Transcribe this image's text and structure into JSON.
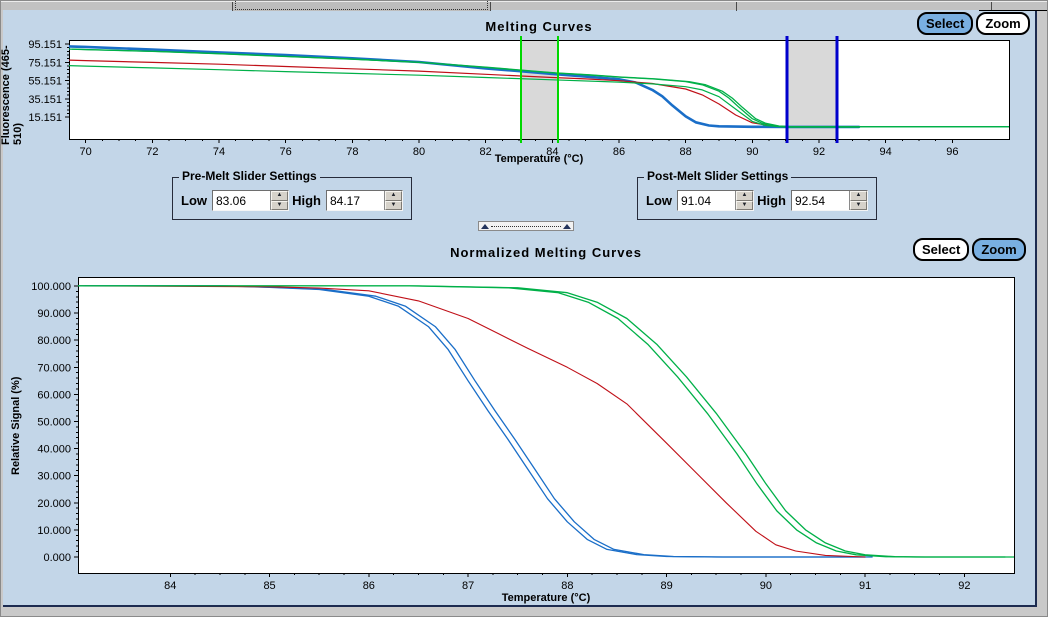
{
  "window": {
    "app_bg": "#c3d6e8"
  },
  "top_chart": {
    "title": "Melting Curves",
    "select_label": "Select",
    "zoom_label": "Zoom",
    "active_button": "Select",
    "xlabel": "Temperature (°C)",
    "ylabel": "Fluorescence (465-510)"
  },
  "pre_melt": {
    "title": "Pre-Melt Slider Settings",
    "low_label": "Low",
    "low_value": "83.06",
    "high_label": "High",
    "high_value": "84.17",
    "spinner_up_icon": "▲",
    "spinner_down_icon": "▼"
  },
  "post_melt": {
    "title": "Post-Melt Slider Settings",
    "low_label": "Low",
    "low_value": "91.04",
    "high_label": "High",
    "high_value": "92.54",
    "spinner_up_icon": "▲",
    "spinner_down_icon": "▼"
  },
  "divider": {
    "left_icon": "▲",
    "right_icon": "▲"
  },
  "bottom_chart": {
    "title": "Normalized Melting Curves",
    "select_label": "Select",
    "zoom_label": "Zoom",
    "active_button": "Zoom",
    "xlabel": "Temperature (°C)",
    "ylabel": "Relative Signal (%)"
  },
  "colors": {
    "background": "#c3d6e8",
    "active_button": "#79afe1",
    "curve_blue": "#1a6ec8",
    "curve_red": "#c01018",
    "curve_green": "#00b048",
    "marker_green": "#00d800",
    "marker_blue": "#0000cc",
    "band_gray": "#d9d9d9"
  },
  "chart_data": [
    {
      "type": "line",
      "title": "Melting Curves",
      "xlabel": "Temperature (°C)",
      "ylabel": "Fluorescence (465-510)",
      "xlim": [
        69.5,
        97.7
      ],
      "ylim": [
        -8.7,
        99.5
      ],
      "grid": false,
      "legend": "none",
      "xticks": [
        70,
        72,
        74,
        76,
        78,
        80,
        82,
        84,
        86,
        88,
        90,
        92,
        94,
        96
      ],
      "yticks": [
        {
          "v": 95.151,
          "label": "95.151"
        },
        {
          "v": 75.151,
          "label": "75.151"
        },
        {
          "v": 55.151,
          "label": "55.151"
        },
        {
          "v": 35.151,
          "label": "35.151"
        },
        {
          "v": 15.151,
          "label": "15.151"
        }
      ],
      "bands": [
        {
          "x1": 83.06,
          "x2": 84.17,
          "color": "#d9d9d9"
        },
        {
          "x1": 91.04,
          "x2": 92.54,
          "color": "#d9d9d9"
        }
      ],
      "vlines": [
        {
          "x": 83.06,
          "color": "#00d800",
          "w": 2,
          "role": "pre-melt-low-slider"
        },
        {
          "x": 84.17,
          "color": "#00d800",
          "w": 2,
          "role": "pre-melt-high-slider"
        },
        {
          "x": 91.04,
          "color": "#0000cc",
          "w": 3,
          "role": "post-melt-low-slider"
        },
        {
          "x": 92.54,
          "color": "#0000cc",
          "w": 3,
          "role": "post-melt-high-slider"
        }
      ],
      "series": [
        {
          "name": "melt-blue-replicates",
          "color": "#1a6ec8",
          "width": 2.6,
          "repeat": [
            0
          ],
          "points": [
            [
              69.5,
              92.5
            ],
            [
              70,
              92
            ],
            [
              72,
              89
            ],
            [
              74,
              86
            ],
            [
              76,
              83
            ],
            [
              78,
              79.5
            ],
            [
              80,
              75.5
            ],
            [
              82,
              68.5
            ],
            [
              83,
              65.5
            ],
            [
              84,
              62.5
            ],
            [
              85,
              59.5
            ],
            [
              86,
              56.5
            ],
            [
              86.5,
              53
            ],
            [
              87,
              45
            ],
            [
              87.3,
              38
            ],
            [
              87.6,
              28
            ],
            [
              88,
              16
            ],
            [
              88.3,
              9.5
            ],
            [
              88.7,
              6
            ],
            [
              89,
              5.2
            ],
            [
              89.5,
              4.8
            ],
            [
              90,
              4.6
            ],
            [
              91,
              4.5
            ],
            [
              93.2,
              4.5
            ]
          ]
        },
        {
          "name": "melt-red",
          "color": "#c01018",
          "width": 1.2,
          "repeat": [
            0
          ],
          "points": [
            [
              69.5,
              77.5
            ],
            [
              70,
              77
            ],
            [
              72,
              75
            ],
            [
              74,
              73
            ],
            [
              76,
              70.5
            ],
            [
              78,
              68
            ],
            [
              80,
              65.5
            ],
            [
              82,
              62
            ],
            [
              84,
              58.5
            ],
            [
              85,
              57
            ],
            [
              86,
              55
            ],
            [
              87,
              52
            ],
            [
              88,
              46
            ],
            [
              88.5,
              39.5
            ],
            [
              89,
              29.5
            ],
            [
              89.5,
              17.5
            ],
            [
              90,
              9
            ],
            [
              90.5,
              6
            ],
            [
              91,
              4.6
            ],
            [
              93.2,
              4.5
            ]
          ]
        },
        {
          "name": "melt-green-a",
          "color": "#00b048",
          "width": 1.3,
          "repeat": [
            0,
            0.1
          ],
          "points": [
            [
              69.5,
              89.5
            ],
            [
              70,
              89
            ],
            [
              72,
              87
            ],
            [
              74,
              84.5
            ],
            [
              76,
              81.5
            ],
            [
              78,
              78.5
            ],
            [
              80,
              75
            ],
            [
              82,
              69.5
            ],
            [
              84,
              63.5
            ],
            [
              85,
              61.5
            ],
            [
              86,
              59
            ],
            [
              87,
              57
            ],
            [
              88,
              54
            ],
            [
              88.5,
              50.5
            ],
            [
              89,
              43.5
            ],
            [
              89.3,
              36
            ],
            [
              89.6,
              26
            ],
            [
              90,
              13.5
            ],
            [
              90.3,
              8.5
            ],
            [
              90.7,
              5.5
            ],
            [
              91,
              4.8
            ],
            [
              92.5,
              4.7
            ],
            [
              97.7,
              4.7
            ]
          ]
        },
        {
          "name": "melt-green-b",
          "color": "#00b048",
          "width": 1.2,
          "repeat": [
            0
          ],
          "points": [
            [
              69.5,
              71.5
            ],
            [
              70,
              71
            ],
            [
              72,
              69
            ],
            [
              74,
              67
            ],
            [
              76,
              65
            ],
            [
              78,
              63
            ],
            [
              80,
              61
            ],
            [
              82,
              58.5
            ],
            [
              84,
              56
            ],
            [
              86,
              53.5
            ],
            [
              87,
              51.5
            ],
            [
              88,
              48.5
            ],
            [
              88.5,
              45
            ],
            [
              89,
              37.5
            ],
            [
              89.5,
              24
            ],
            [
              90,
              10.5
            ],
            [
              90.4,
              6
            ],
            [
              91,
              4.3
            ],
            [
              93.2,
              4.3
            ]
          ]
        }
      ]
    },
    {
      "type": "line",
      "title": "Normalized Melting Curves",
      "xlabel": "Temperature (°C)",
      "ylabel": "Relative Signal (%)",
      "xlim": [
        83.07,
        92.5
      ],
      "ylim": [
        -5.9,
        103.3
      ],
      "grid": false,
      "legend": "none",
      "xticks": [
        84,
        85,
        86,
        87,
        88,
        89,
        90,
        91,
        92
      ],
      "yticks": [
        {
          "v": 100,
          "label": "100.000"
        },
        {
          "v": 90,
          "label": "90.000"
        },
        {
          "v": 80,
          "label": "80.000"
        },
        {
          "v": 70,
          "label": "70.000"
        },
        {
          "v": 60,
          "label": "60.000"
        },
        {
          "v": 50,
          "label": "50.000"
        },
        {
          "v": 40,
          "label": "40.000"
        },
        {
          "v": 30,
          "label": "30.000"
        },
        {
          "v": 20,
          "label": "20.000"
        },
        {
          "v": 10,
          "label": "10.000"
        },
        {
          "v": 0,
          "label": "0.000"
        }
      ],
      "bands": [],
      "vlines": [],
      "series": [
        {
          "name": "norm-blue-replicates",
          "color": "#1a6ec8",
          "width": 1.3,
          "repeat": [
            0,
            0.07
          ],
          "points": [
            [
              83.07,
              100
            ],
            [
              84.5,
              100
            ],
            [
              85,
              99.5
            ],
            [
              85.5,
              98.7
            ],
            [
              86,
              96.2
            ],
            [
              86.3,
              92.5
            ],
            [
              86.6,
              85
            ],
            [
              86.8,
              76.5
            ],
            [
              87,
              65
            ],
            [
              87.2,
              54
            ],
            [
              87.4,
              43.5
            ],
            [
              87.6,
              32.5
            ],
            [
              87.8,
              21.5
            ],
            [
              88,
              13
            ],
            [
              88.2,
              6.5
            ],
            [
              88.4,
              2.8
            ],
            [
              88.7,
              0.9
            ],
            [
              89,
              0.2
            ],
            [
              89.5,
              0
            ],
            [
              91,
              0
            ]
          ]
        },
        {
          "name": "norm-red",
          "color": "#c01018",
          "width": 1.1,
          "repeat": [
            0
          ],
          "points": [
            [
              83.07,
              100
            ],
            [
              85,
              99.7
            ],
            [
              85.5,
              99.2
            ],
            [
              86,
              98.2
            ],
            [
              86.5,
              94.5
            ],
            [
              87,
              88
            ],
            [
              87.3,
              82.5
            ],
            [
              87.6,
              77
            ],
            [
              88,
              70
            ],
            [
              88.3,
              64
            ],
            [
              88.6,
              56.5
            ],
            [
              89,
              42
            ],
            [
              89.3,
              31
            ],
            [
              89.6,
              20
            ],
            [
              89.9,
              9.5
            ],
            [
              90.1,
              4.5
            ],
            [
              90.3,
              2.2
            ],
            [
              90.6,
              0.6
            ],
            [
              91,
              0
            ]
          ]
        },
        {
          "name": "norm-green-replicates",
          "color": "#00b048",
          "width": 1.3,
          "repeat": [
            0,
            -0.09
          ],
          "points": [
            [
              83.07,
              100
            ],
            [
              86.5,
              100
            ],
            [
              87.5,
              99.3
            ],
            [
              88,
              97.5
            ],
            [
              88.3,
              94
            ],
            [
              88.6,
              88
            ],
            [
              88.9,
              78.5
            ],
            [
              89.2,
              66.5
            ],
            [
              89.5,
              53
            ],
            [
              89.8,
              38
            ],
            [
              90,
              27
            ],
            [
              90.2,
              17
            ],
            [
              90.4,
              10
            ],
            [
              90.6,
              5.2
            ],
            [
              90.8,
              2.2
            ],
            [
              91,
              0.8
            ],
            [
              91.3,
              0.1
            ],
            [
              91.6,
              0
            ],
            [
              92.5,
              0
            ]
          ]
        }
      ]
    }
  ]
}
